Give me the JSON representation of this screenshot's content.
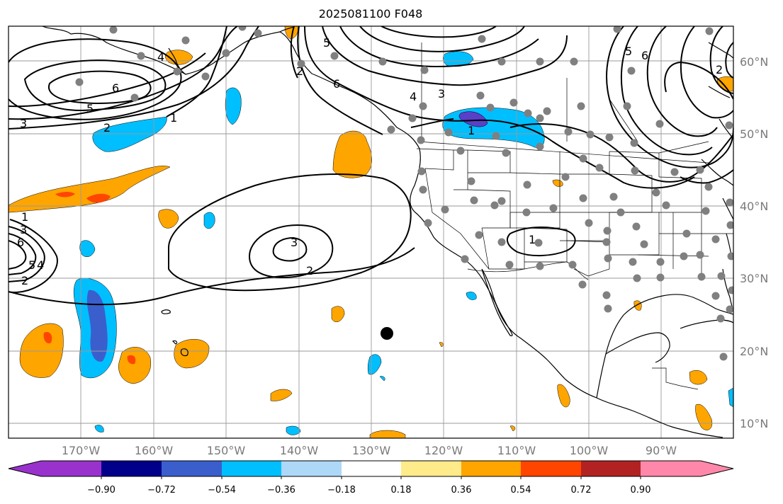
{
  "title": "2025081100 F048",
  "lat_labels": [
    "60°N",
    "50°N",
    "40°N",
    "30°N",
    "20°N",
    "10°N"
  ],
  "lon_labels": [
    "170°W",
    "160°W",
    "150°W",
    "140°W",
    "130°W",
    "120°W",
    "110°W",
    "100°W",
    "90°W"
  ],
  "contour_labels": [
    "6",
    "5",
    "4",
    "3",
    "2",
    "1",
    "6",
    "5",
    "4",
    "3",
    "2",
    "1",
    "3",
    "2",
    "1",
    "5",
    "6",
    "2",
    "1",
    "2",
    "3",
    "6",
    "5",
    "4"
  ],
  "colorbar": {
    "tick_labels": [
      "−0.90",
      "−0.72",
      "−0.54",
      "−0.36",
      "−0.18",
      "0.18",
      "0.36",
      "0.54",
      "0.72",
      "0.90"
    ],
    "colors": [
      "#9932cc",
      "#00008b",
      "#3a5fcd",
      "#00bfff",
      "#add8f7",
      "#ffffff",
      "#ffeb8a",
      "#ffa500",
      "#ff4500",
      "#b22222",
      "#ff88aa"
    ]
  },
  "colors": {
    "negative_light": "#00bfff",
    "negative_mid": "#3a5fcd",
    "negative_dark": "#5a3fc8",
    "positive_light": "#ffa500",
    "positive_mid": "#ff4500",
    "station": "#808080",
    "marker": "#000000"
  }
}
